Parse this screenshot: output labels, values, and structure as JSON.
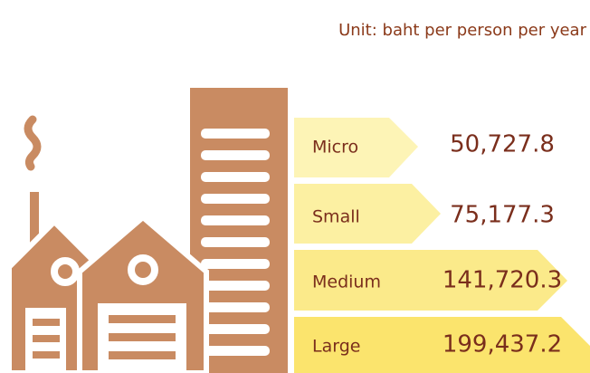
{
  "unit": "Unit: baht per person per year",
  "rows": [
    {
      "label": "Micro",
      "value": "50,727.8"
    },
    {
      "label": "Small",
      "value": "75,177.3"
    },
    {
      "label": "Medium",
      "value": "141,720.3"
    },
    {
      "label": "Large",
      "value": "199,437.2"
    }
  ]
}
